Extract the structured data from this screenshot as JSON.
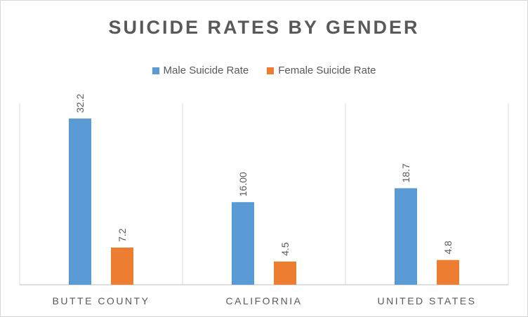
{
  "chart_data": {
    "type": "bar",
    "title": "SUICIDE RATES BY GENDER",
    "categories": [
      "BUTTE COUNTY",
      "CALIFORNIA",
      "UNITED STATES"
    ],
    "series": [
      {
        "name": "Male Suicide Rate",
        "color": "#5b9bd5",
        "values": [
          32.2,
          16.0,
          18.7
        ],
        "labels": [
          "32.2",
          "16.00",
          "18.7"
        ]
      },
      {
        "name": "Female Suicide Rate",
        "color": "#ed7d31",
        "values": [
          7.2,
          4.5,
          4.8
        ],
        "labels": [
          "7.2",
          "4.5",
          "4.8"
        ]
      }
    ],
    "ylim": [
      0,
      35
    ],
    "grid": "vertical category separators",
    "legend": "top-center",
    "data_label_orientation": "vertical"
  }
}
